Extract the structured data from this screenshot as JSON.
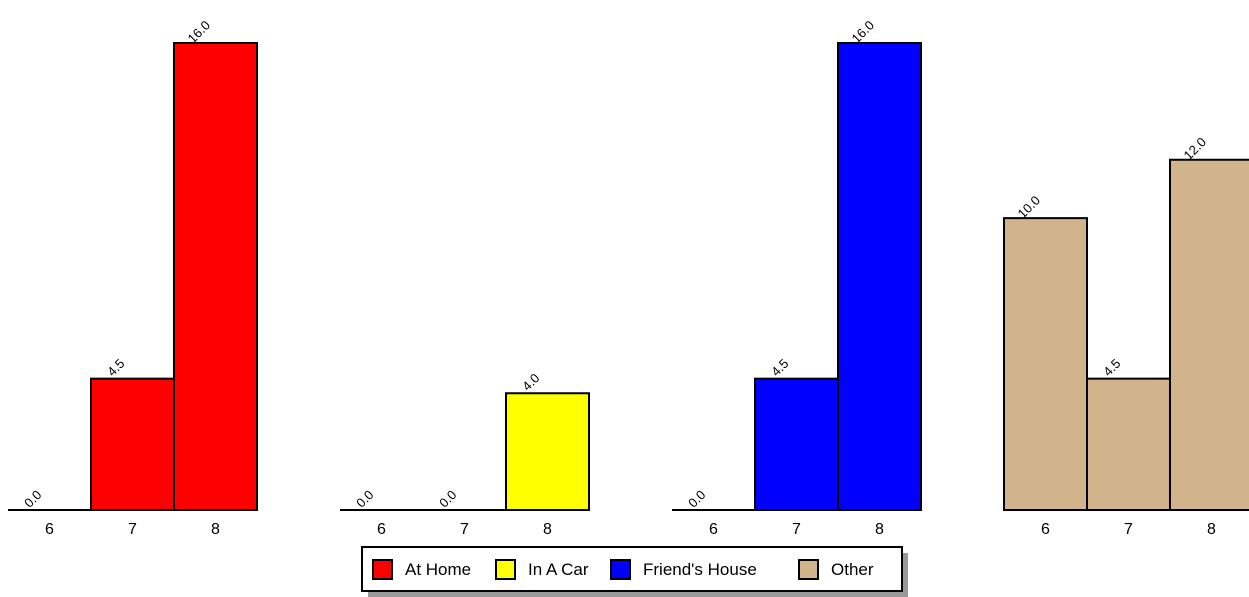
{
  "chart_data": {
    "type": "bar",
    "categories": [
      "6",
      "7",
      "8"
    ],
    "series": [
      {
        "name": "At Home",
        "color": "#ff0000",
        "values": [
          0.0,
          4.5,
          16.0
        ],
        "labels": [
          "0.0",
          "4.5",
          "16.0"
        ]
      },
      {
        "name": "In A Car",
        "color": "#ffff00",
        "values": [
          0.0,
          0.0,
          4.0
        ],
        "labels": [
          "0.0",
          "0.0",
          "4.0"
        ]
      },
      {
        "name": "Friend's House",
        "color": "#0000ff",
        "values": [
          0.0,
          4.5,
          16.0
        ],
        "labels": [
          "0.0",
          "4.5",
          "16.0"
        ]
      },
      {
        "name": "Other",
        "color": "#d2b48c",
        "values": [
          10.0,
          4.5,
          12.0
        ],
        "labels": [
          "10.0",
          "4.5",
          "12.0"
        ]
      }
    ],
    "title": "",
    "xlabel": "",
    "ylabel": "",
    "ylim": [
      0,
      16
    ],
    "grid": false,
    "legend_position": "bottom-center",
    "layout": "small-multiples"
  }
}
